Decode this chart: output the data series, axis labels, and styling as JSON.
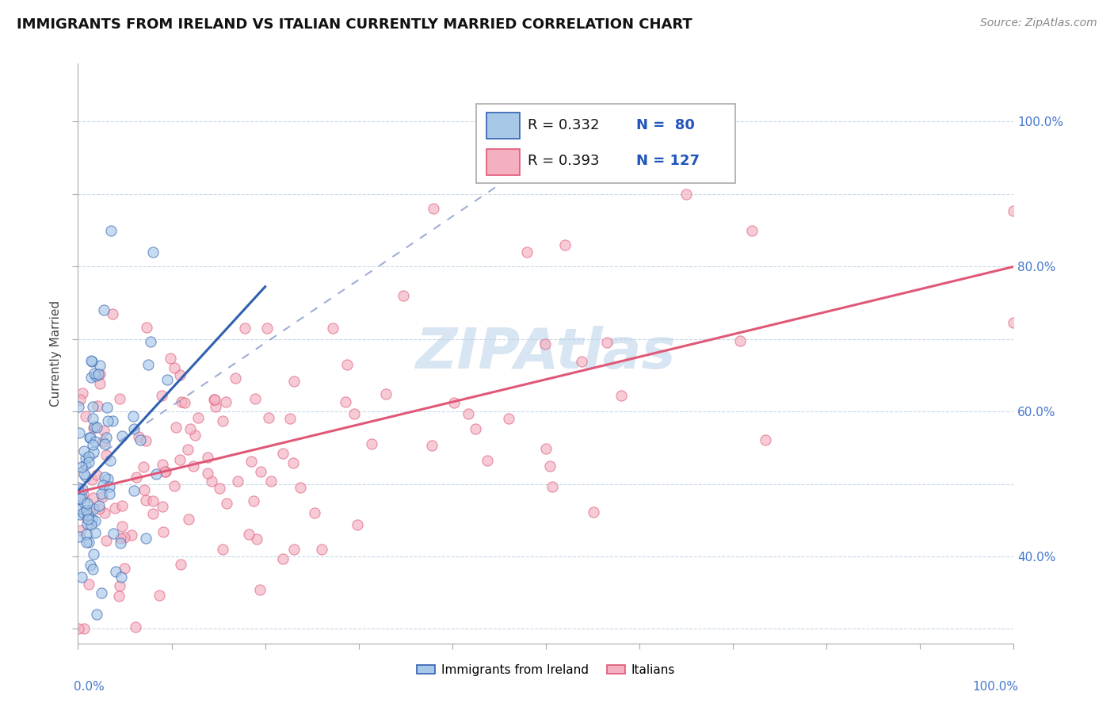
{
  "title": "IMMIGRANTS FROM IRELAND VS ITALIAN CURRENTLY MARRIED CORRELATION CHART",
  "source_text": "Source: ZipAtlas.com",
  "ylabel": "Currently Married",
  "ireland_R": 0.332,
  "ireland_N": 80,
  "italian_R": 0.393,
  "italian_N": 127,
  "ireland_color": "#a8c8e8",
  "italian_color": "#f4b0c0",
  "ireland_line_color": "#3060b0",
  "italian_line_color": "#e05878",
  "watermark_color": "#b8d0e8",
  "right_ytick_vals": [
    40,
    60,
    80,
    100
  ],
  "right_ytick_labels": [
    "40.0%",
    "60.0%",
    "80.0%",
    "100.0%"
  ],
  "ylim_low": 28,
  "ylim_high": 108,
  "xlim_low": 0,
  "xlim_high": 100,
  "grid_color": "#c8d8e8",
  "title_fontsize": 13,
  "source_fontsize": 10,
  "ylabel_fontsize": 11,
  "dot_size": 90,
  "dot_alpha": 0.65
}
